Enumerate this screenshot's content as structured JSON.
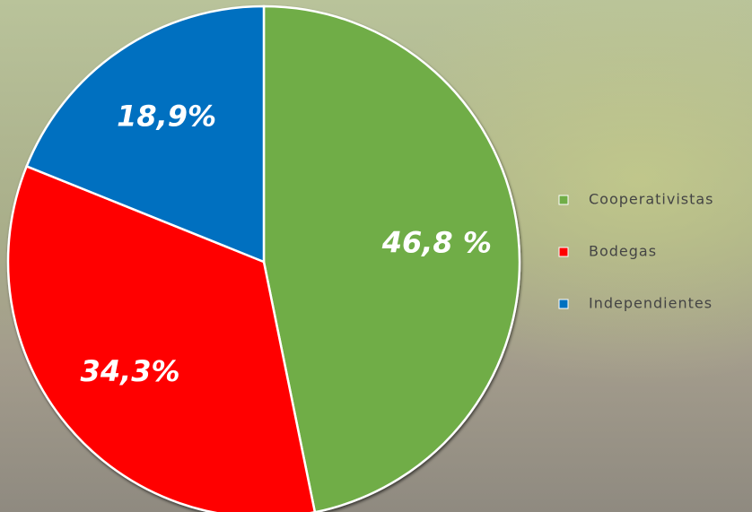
{
  "chart_data": {
    "type": "pie",
    "categories": [
      "Cooperativistas",
      "Bodegas",
      "Independientes"
    ],
    "values": [
      46.8,
      34.3,
      18.9
    ],
    "value_labels": [
      "46,8 %",
      "34,3%",
      "18,9%"
    ],
    "colors": [
      "#70ad47",
      "#ff0000",
      "#0070c0"
    ],
    "legend": "right"
  }
}
